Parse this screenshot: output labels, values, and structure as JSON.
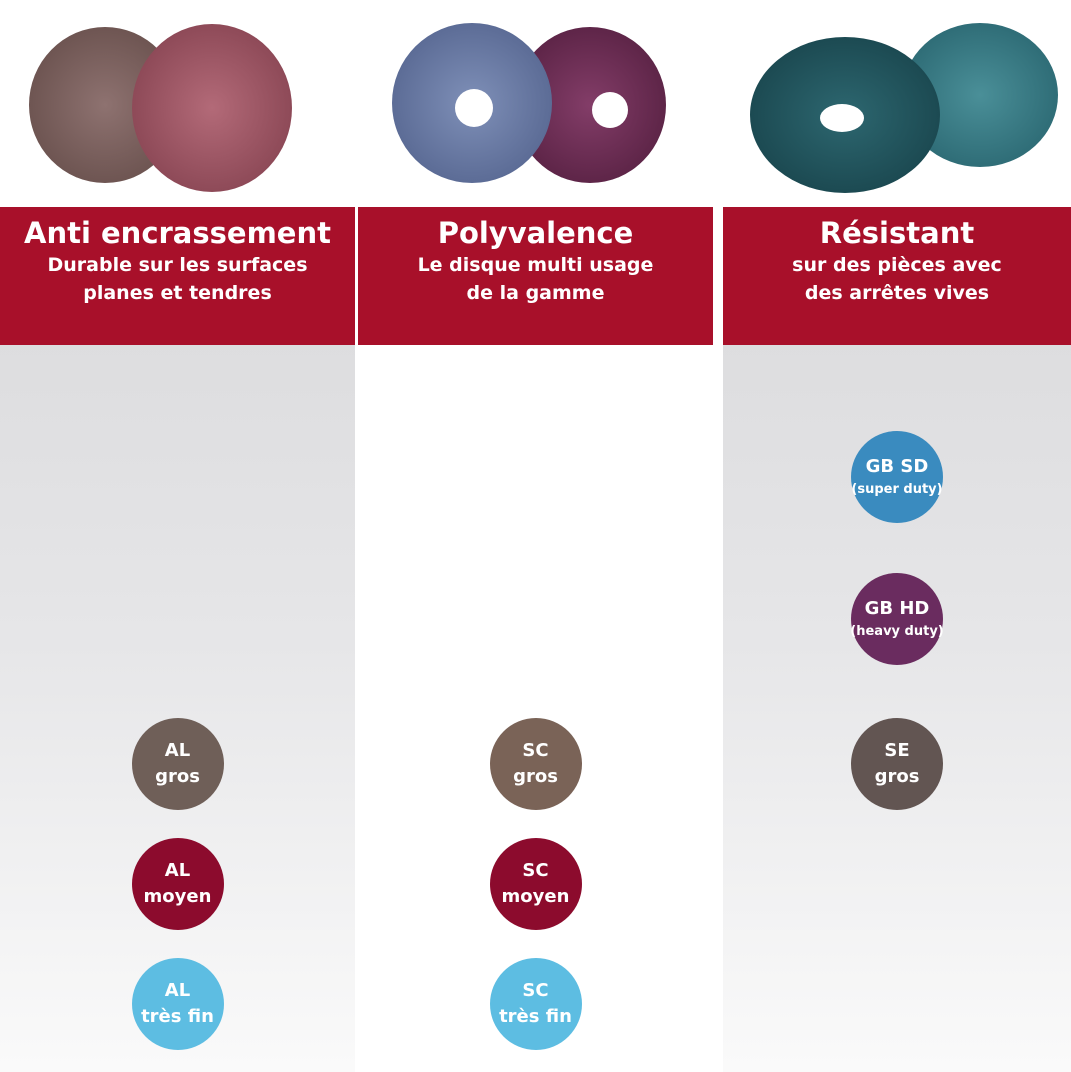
{
  "columns": [
    {
      "title": "Anti encrassement",
      "subtitle": [
        "Durable sur les surfaces",
        "planes et tendres"
      ],
      "badges": [
        {
          "lines": [
            "AL",
            "gros"
          ],
          "color": "#6f5f58"
        },
        {
          "lines": [
            "AL",
            "moyen"
          ],
          "color": "#8c0b2d"
        },
        {
          "lines": [
            "AL",
            "très fin"
          ],
          "color": "#5dbde2"
        }
      ]
    },
    {
      "title": "Polyvalence",
      "subtitle": [
        "Le disque multi usage",
        "de la gamme"
      ],
      "badges": [
        {
          "lines": [
            "SC",
            "gros"
          ],
          "color": "#7a6357"
        },
        {
          "lines": [
            "SC",
            "moyen"
          ],
          "color": "#8c0b2d"
        },
        {
          "lines": [
            "SC",
            "très fin"
          ],
          "color": "#5dbde2"
        }
      ]
    },
    {
      "title": "Résistant",
      "subtitle": [
        "sur des pièces avec",
        "des arrêtes vives"
      ],
      "badges": [
        {
          "lines": [
            "GB SD",
            "(super duty)"
          ],
          "color": "#3a8bbf"
        },
        {
          "lines": [
            "GB HD",
            "(heavy duty)"
          ],
          "color": "#6a2c5f"
        },
        {
          "lines": [
            "SE",
            "gros"
          ],
          "color": "#625552"
        }
      ]
    }
  ]
}
